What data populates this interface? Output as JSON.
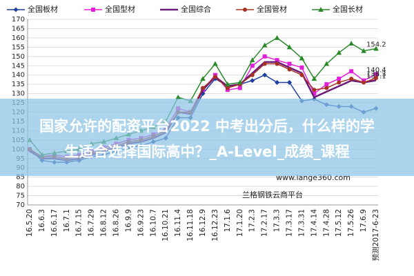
{
  "chart_data": {
    "type": "line",
    "categories": [
      "16.5.20",
      "16.6.3",
      "16.6.17",
      "16.7.1",
      "16.7.15",
      "16.7.29",
      "16.8.12",
      "16.8.26",
      "16.9.9",
      "16.9.23",
      "16.10.7",
      "16.10.21",
      "16.11.4",
      "16.11.18",
      "16.12.9",
      "16.12.23",
      "17.1.6",
      "17.1.20",
      "17.2.3",
      "17.2.17",
      "17.3.3",
      "17.3.17",
      "17.3.31",
      "17.4.14",
      "17.4.28",
      "17.5.12",
      "17.5.26",
      "17.6.9",
      "预测2017-6-23"
    ],
    "series": [
      {
        "name": "全国板材",
        "color": "#1f3f9e",
        "marker": "diamond",
        "values": [
          100,
          94,
          93,
          93,
          94,
          96,
          97,
          99,
          101,
          102,
          104,
          106,
          117,
          117,
          130,
          138,
          134,
          135,
          137,
          140,
          136,
          136,
          126,
          127,
          124,
          123,
          123,
          120,
          122
        ]
      },
      {
        "name": "全国型材",
        "color": "#e020d8",
        "marker": "square",
        "values": [
          100,
          96,
          97,
          96,
          97,
          99,
          101,
          103,
          105,
          106,
          108,
          111,
          122,
          120,
          132,
          140,
          132,
          133,
          145,
          150,
          148,
          146,
          144,
          130,
          135,
          138,
          142,
          137,
          140.4
        ],
        "value_labels": [
          null,
          null,
          null,
          null,
          null,
          null,
          null,
          null,
          null,
          null,
          null,
          null,
          null,
          null,
          null,
          null,
          null,
          null,
          null,
          null,
          null,
          null,
          null,
          null,
          null,
          null,
          null,
          null,
          "140.4"
        ]
      },
      {
        "name": "全国综合",
        "color": "#6a1a78",
        "marker": "none",
        "values": [
          99,
          95,
          95,
          94,
          95,
          97,
          99,
          101,
          103,
          104,
          106,
          109,
          120,
          119,
          132,
          139,
          134,
          135,
          141,
          147,
          147,
          144,
          141,
          128,
          131,
          134,
          137,
          136,
          137.1
        ],
        "value_labels": [
          null,
          null,
          null,
          null,
          null,
          null,
          null,
          null,
          null,
          null,
          null,
          null,
          null,
          null,
          null,
          null,
          null,
          null,
          null,
          null,
          null,
          null,
          null,
          null,
          null,
          null,
          null,
          null,
          "137.1"
        ]
      },
      {
        "name": "全国管材",
        "color": "#a83222",
        "marker": "circle",
        "values": [
          100,
          96,
          96,
          95,
          96,
          98,
          100,
          102,
          104,
          105,
          107,
          110,
          120,
          120,
          133,
          139,
          133,
          135,
          140,
          146,
          146,
          143,
          140,
          132,
          133,
          136,
          138,
          136,
          138.3
        ],
        "value_labels": [
          null,
          null,
          null,
          null,
          null,
          null,
          null,
          null,
          null,
          null,
          null,
          null,
          null,
          null,
          null,
          null,
          null,
          null,
          null,
          null,
          null,
          null,
          null,
          null,
          null,
          null,
          null,
          null,
          "138.3"
        ]
      },
      {
        "name": "全国长材",
        "color": "#2a8a2a",
        "marker": "triangle",
        "values": [
          105,
          97,
          98,
          99,
          100,
          103,
          104,
          106,
          108,
          110,
          112,
          115,
          128,
          126,
          138,
          146,
          135,
          136,
          148,
          156,
          160,
          155,
          149,
          138,
          146,
          152,
          157,
          153,
          154.2
        ],
        "value_labels": [
          null,
          null,
          null,
          null,
          null,
          null,
          null,
          null,
          null,
          null,
          null,
          null,
          null,
          null,
          null,
          null,
          null,
          null,
          null,
          null,
          null,
          null,
          null,
          null,
          null,
          null,
          null,
          null,
          "154.2"
        ]
      }
    ],
    "ylim": [
      70,
      170
    ],
    "yticks": [
      70,
      75,
      80,
      85,
      90,
      95,
      100,
      105,
      110,
      115,
      120,
      125,
      130,
      135,
      140,
      145,
      150,
      155,
      160,
      165,
      170
    ],
    "grid": true,
    "legend": "top"
  },
  "watermark": {
    "site": "www.lange360.com",
    "brand": "兰格钢铁云商平台"
  },
  "banner": {
    "line1": "国家允许的配资平台2022 中考出分后，什么样的学",
    "line2": "生适合选择国际高中？_A-Level_成绩_课程"
  }
}
